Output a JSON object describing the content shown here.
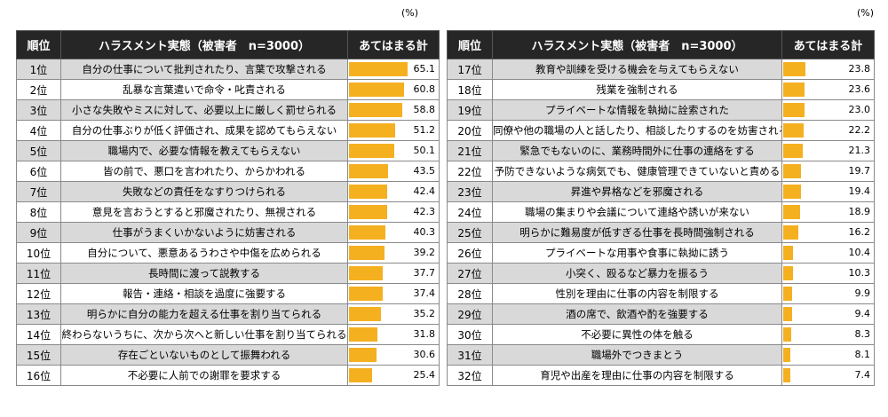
{
  "unit": "(%)",
  "headers": {
    "rank": "順位",
    "item": "ハラスメント実態（被害者　n=3000）",
    "value": "あてはまる計"
  },
  "chart_data": {
    "type": "bar",
    "orientation": "horizontal",
    "xlim": [
      0,
      100
    ],
    "rows": [
      {
        "rank": "1位",
        "label": "自分の仕事について批判されたり、言葉で攻撃される",
        "value": 65.1
      },
      {
        "rank": "2位",
        "label": "乱暴な言葉遣いで命令・叱責される",
        "value": 60.8
      },
      {
        "rank": "3位",
        "label": "小さな失敗やミスに対して、必要以上に厳しく罰せられる",
        "value": 58.8
      },
      {
        "rank": "4位",
        "label": "自分の仕事ぶりが低く評価され、成果を認めてもらえない",
        "value": 51.2
      },
      {
        "rank": "5位",
        "label": "職場内で、必要な情報を教えてもらえない",
        "value": 50.1
      },
      {
        "rank": "6位",
        "label": "皆の前で、悪口を言われたり、からかわれる",
        "value": 43.5
      },
      {
        "rank": "7位",
        "label": "失敗などの責任をなすりつけられる",
        "value": 42.4
      },
      {
        "rank": "8位",
        "label": "意見を言おうとすると邪魔されたり、無視される",
        "value": 42.3
      },
      {
        "rank": "9位",
        "label": "仕事がうまくいかないように妨害される",
        "value": 40.3
      },
      {
        "rank": "10位",
        "label": "自分について、悪意あるうわさや中傷を広められる",
        "value": 39.2
      },
      {
        "rank": "11位",
        "label": "長時間に渡って説教する",
        "value": 37.7
      },
      {
        "rank": "12位",
        "label": "報告・連絡・相談を過度に強要する",
        "value": 37.4
      },
      {
        "rank": "13位",
        "label": "明らかに自分の能力を超える仕事を割り当てられる",
        "value": 35.2
      },
      {
        "rank": "14位",
        "label": "終わらないうちに、次から次へと新しい仕事を割り当てられる",
        "value": 31.8
      },
      {
        "rank": "15位",
        "label": "存在ごといないものとして振舞われる",
        "value": 30.6
      },
      {
        "rank": "16位",
        "label": "不必要に人前での謝罪を要求する",
        "value": 25.4
      },
      {
        "rank": "17位",
        "label": "教育や訓練を受ける機会を与えてもらえない",
        "value": 23.8
      },
      {
        "rank": "18位",
        "label": "残業を強制される",
        "value": 23.6
      },
      {
        "rank": "19位",
        "label": "プライベートな情報を執拗に詮索された",
        "value": 23.0
      },
      {
        "rank": "20位",
        "label": "同僚や他の職場の人と話したり、相談したりするのを妨害される",
        "value": 22.2
      },
      {
        "rank": "21位",
        "label": "緊急でもないのに、業務時間外に仕事の連絡をする",
        "value": 21.3
      },
      {
        "rank": "22位",
        "label": "予防できないような病気でも、健康管理できていないと責める",
        "value": 19.7
      },
      {
        "rank": "23位",
        "label": "昇進や昇格などを邪魔される",
        "value": 19.4
      },
      {
        "rank": "24位",
        "label": "職場の集まりや会議について連絡や誘いが来ない",
        "value": 18.9
      },
      {
        "rank": "25位",
        "label": "明らかに難易度が低すぎる仕事を長時間強制される",
        "value": 16.2
      },
      {
        "rank": "26位",
        "label": "プライベートな用事や食事に執拗に誘う",
        "value": 10.4
      },
      {
        "rank": "27位",
        "label": "小突く、殴るなど暴力を振るう",
        "value": 10.3
      },
      {
        "rank": "28位",
        "label": "性別を理由に仕事の内容を制限する",
        "value": 9.9
      },
      {
        "rank": "29位",
        "label": "酒の席で、飲酒や酌を強要する",
        "value": 9.4
      },
      {
        "rank": "30位",
        "label": "不必要に異性の体を触る",
        "value": 8.3
      },
      {
        "rank": "31位",
        "label": "職場外でつきまとう",
        "value": 8.1
      },
      {
        "rank": "32位",
        "label": "育児や出産を理由に仕事の内容を制限する",
        "value": 7.4
      }
    ]
  },
  "colors": {
    "bar": "#f5b020",
    "header": "#262626",
    "shade": "#d9d9d9"
  }
}
